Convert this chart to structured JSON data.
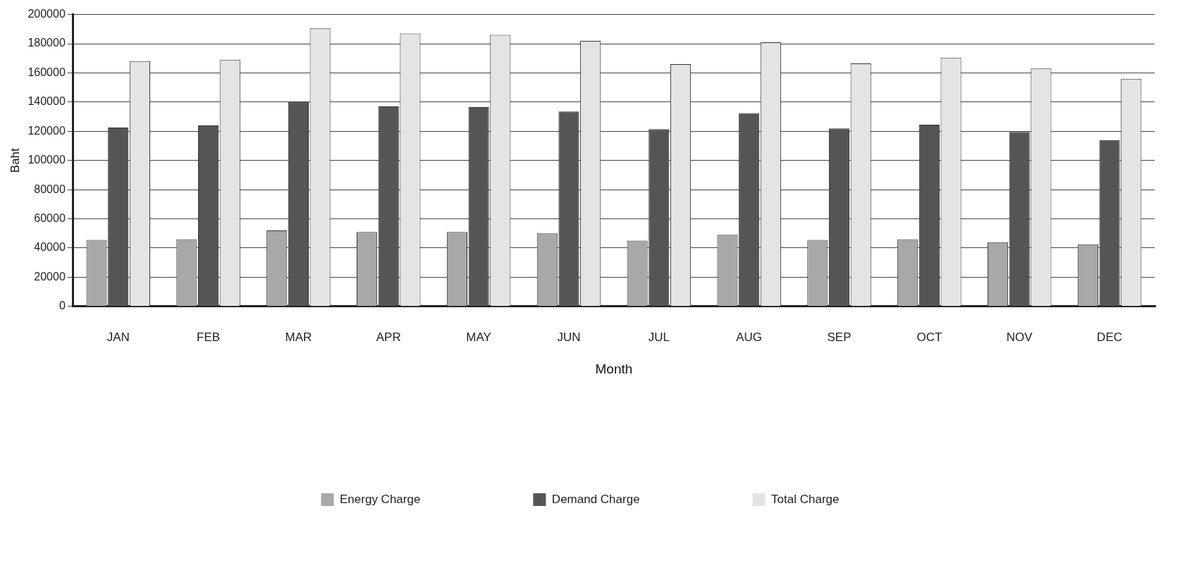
{
  "chart_data": {
    "type": "bar",
    "xlabel": "Month",
    "ylabel": "Baht",
    "categories": [
      "JAN",
      "FEB",
      "MAR",
      "APR",
      "MAY",
      "JUN",
      "JUL",
      "AUG",
      "SEP",
      "OCT",
      "NOV",
      "DEC"
    ],
    "series": [
      {
        "name": "Energy Charge",
        "color": "#a8a8a8",
        "values": [
          45500,
          46000,
          52000,
          51000,
          51000,
          50000,
          45000,
          49000,
          45500,
          46000,
          44000,
          42500
        ]
      },
      {
        "name": "Demand Charge",
        "color": "#555555",
        "values": [
          122500,
          124000,
          140000,
          137000,
          136500,
          133500,
          121500,
          132500,
          122000,
          124500,
          119500,
          114000
        ]
      },
      {
        "name": "Total Charge",
        "color": "#e4e4e4",
        "values": [
          168000,
          169000,
          190500,
          187000,
          186000,
          182000,
          166000,
          181000,
          166500,
          170500,
          163000,
          156000
        ]
      }
    ],
    "ylim": [
      0,
      200000
    ],
    "yticks": [
      0,
      20000,
      40000,
      60000,
      80000,
      100000,
      120000,
      140000,
      160000,
      180000,
      200000
    ],
    "grid": "y",
    "legend": "bottom"
  }
}
